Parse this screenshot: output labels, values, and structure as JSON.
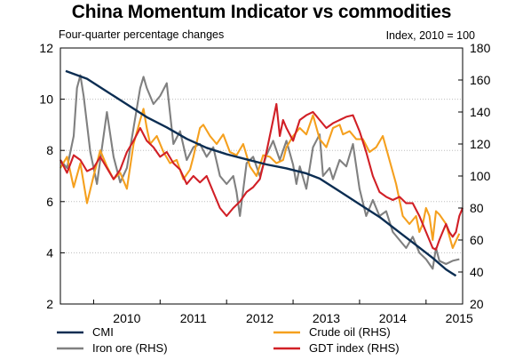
{
  "chart_data": {
    "type": "line",
    "title": "China Momentum Indicator vs commodities",
    "subtitle_left": "Four-quarter percentage changes",
    "subtitle_right": "Index, 2010 = 100",
    "x_range": [
      2009.5,
      2015.55
    ],
    "x_ticks": [
      "2010",
      "2011",
      "2012",
      "2013",
      "2014",
      "2015"
    ],
    "y_left": {
      "range": [
        2,
        12
      ],
      "ticks": [
        2,
        4,
        6,
        8,
        10,
        12
      ]
    },
    "y_right": {
      "range": [
        20,
        180
      ],
      "ticks": [
        20,
        40,
        60,
        80,
        100,
        120,
        140,
        160,
        180
      ]
    },
    "grid": "horizontal dotted",
    "legend_position": "bottom",
    "series": [
      {
        "name": "CMI",
        "axis": "left",
        "color": "#0b2d52",
        "points": [
          [
            2009.58,
            11.1
          ],
          [
            2009.9,
            10.8
          ],
          [
            2010.2,
            10.3
          ],
          [
            2010.5,
            9.8
          ],
          [
            2010.8,
            9.3
          ],
          [
            2011.1,
            8.9
          ],
          [
            2011.4,
            8.45
          ],
          [
            2011.7,
            8.1
          ],
          [
            2012.0,
            7.85
          ],
          [
            2012.3,
            7.65
          ],
          [
            2012.6,
            7.45
          ],
          [
            2012.9,
            7.3
          ],
          [
            2013.2,
            7.1
          ],
          [
            2013.4,
            6.9
          ],
          [
            2013.7,
            6.4
          ],
          [
            2014.0,
            5.9
          ],
          [
            2014.3,
            5.4
          ],
          [
            2014.6,
            4.8
          ],
          [
            2014.9,
            4.2
          ],
          [
            2015.1,
            3.8
          ],
          [
            2015.3,
            3.35
          ],
          [
            2015.45,
            3.1
          ]
        ]
      },
      {
        "name": "Iron ore (RHS)",
        "axis": "right",
        "color": "#808080",
        "points": [
          [
            2009.5,
            110
          ],
          [
            2009.6,
            105
          ],
          [
            2009.7,
            125
          ],
          [
            2009.75,
            155
          ],
          [
            2009.8,
            163
          ],
          [
            2009.85,
            150
          ],
          [
            2009.95,
            115
          ],
          [
            2010.05,
            95
          ],
          [
            2010.1,
            110
          ],
          [
            2010.2,
            140
          ],
          [
            2010.3,
            112
          ],
          [
            2010.4,
            96
          ],
          [
            2010.5,
            105
          ],
          [
            2010.6,
            130
          ],
          [
            2010.7,
            155
          ],
          [
            2010.75,
            162
          ],
          [
            2010.8,
            155
          ],
          [
            2010.9,
            145
          ],
          [
            2011.0,
            150
          ],
          [
            2011.1,
            158
          ],
          [
            2011.2,
            120
          ],
          [
            2011.3,
            128
          ],
          [
            2011.4,
            110
          ],
          [
            2011.5,
            118
          ],
          [
            2011.6,
            120
          ],
          [
            2011.7,
            112
          ],
          [
            2011.8,
            118
          ],
          [
            2011.9,
            100
          ],
          [
            2012.0,
            95
          ],
          [
            2012.1,
            100
          ],
          [
            2012.15,
            90
          ],
          [
            2012.2,
            75
          ],
          [
            2012.3,
            108
          ],
          [
            2012.4,
            112
          ],
          [
            2012.5,
            100
          ],
          [
            2012.6,
            113
          ],
          [
            2012.7,
            122
          ],
          [
            2012.8,
            110
          ],
          [
            2012.9,
            122
          ],
          [
            2013.0,
            107
          ],
          [
            2013.05,
            95
          ],
          [
            2013.1,
            106
          ],
          [
            2013.2,
            92
          ],
          [
            2013.3,
            118
          ],
          [
            2013.4,
            126
          ],
          [
            2013.45,
            100
          ],
          [
            2013.55,
            105
          ],
          [
            2013.6,
            98
          ],
          [
            2013.7,
            110
          ],
          [
            2013.8,
            106
          ],
          [
            2013.9,
            120
          ],
          [
            2014.0,
            92
          ],
          [
            2014.1,
            75
          ],
          [
            2014.2,
            85
          ],
          [
            2014.3,
            75
          ],
          [
            2014.4,
            78
          ],
          [
            2014.5,
            65
          ],
          [
            2014.6,
            60
          ],
          [
            2014.7,
            55
          ],
          [
            2014.8,
            62
          ],
          [
            2014.9,
            52
          ],
          [
            2015.0,
            48
          ],
          [
            2015.1,
            42
          ],
          [
            2015.15,
            55
          ],
          [
            2015.2,
            47
          ],
          [
            2015.3,
            45
          ],
          [
            2015.4,
            47
          ],
          [
            2015.5,
            48
          ]
        ]
      },
      {
        "name": "Crude oil (RHS)",
        "axis": "right",
        "color": "#f5a01e",
        "points": [
          [
            2009.5,
            105
          ],
          [
            2009.6,
            112
          ],
          [
            2009.7,
            93
          ],
          [
            2009.8,
            108
          ],
          [
            2009.9,
            83
          ],
          [
            2010.0,
            100
          ],
          [
            2010.1,
            116
          ],
          [
            2010.2,
            106
          ],
          [
            2010.3,
            98
          ],
          [
            2010.4,
            102
          ],
          [
            2010.5,
            92
          ],
          [
            2010.6,
            120
          ],
          [
            2010.7,
            135
          ],
          [
            2010.75,
            142
          ],
          [
            2010.8,
            130
          ],
          [
            2010.85,
            120
          ],
          [
            2010.95,
            125
          ],
          [
            2011.05,
            115
          ],
          [
            2011.15,
            108
          ],
          [
            2011.25,
            110
          ],
          [
            2011.35,
            98
          ],
          [
            2011.45,
            104
          ],
          [
            2011.5,
            112
          ],
          [
            2011.6,
            130
          ],
          [
            2011.65,
            132
          ],
          [
            2011.75,
            125
          ],
          [
            2011.85,
            120
          ],
          [
            2011.95,
            126
          ],
          [
            2012.05,
            115
          ],
          [
            2012.15,
            113
          ],
          [
            2012.25,
            120
          ],
          [
            2012.35,
            106
          ],
          [
            2012.45,
            100
          ],
          [
            2012.55,
            113
          ],
          [
            2012.65,
            112
          ],
          [
            2012.75,
            108
          ],
          [
            2012.85,
            110
          ],
          [
            2012.9,
            118
          ],
          [
            2013.0,
            125
          ],
          [
            2013.1,
            130
          ],
          [
            2013.2,
            126
          ],
          [
            2013.3,
            138
          ],
          [
            2013.4,
            123
          ],
          [
            2013.5,
            118
          ],
          [
            2013.6,
            130
          ],
          [
            2013.7,
            132
          ],
          [
            2013.75,
            126
          ],
          [
            2013.85,
            128
          ],
          [
            2013.95,
            123
          ],
          [
            2014.05,
            123
          ],
          [
            2014.15,
            115
          ],
          [
            2014.25,
            118
          ],
          [
            2014.35,
            125
          ],
          [
            2014.45,
            110
          ],
          [
            2014.55,
            95
          ],
          [
            2014.65,
            75
          ],
          [
            2014.75,
            70
          ],
          [
            2014.85,
            75
          ],
          [
            2014.9,
            65
          ],
          [
            2014.95,
            70
          ],
          [
            2015.0,
            80
          ],
          [
            2015.05,
            75
          ],
          [
            2015.1,
            60
          ],
          [
            2015.15,
            78
          ],
          [
            2015.2,
            76
          ],
          [
            2015.3,
            70
          ],
          [
            2015.4,
            55
          ],
          [
            2015.5,
            64
          ]
        ]
      },
      {
        "name": "GDT index (RHS)",
        "axis": "right",
        "color": "#d11f26",
        "points": [
          [
            2009.5,
            110
          ],
          [
            2009.6,
            102
          ],
          [
            2009.7,
            113
          ],
          [
            2009.8,
            110
          ],
          [
            2009.9,
            103
          ],
          [
            2010.0,
            105
          ],
          [
            2010.1,
            112
          ],
          [
            2010.2,
            105
          ],
          [
            2010.3,
            98
          ],
          [
            2010.4,
            104
          ],
          [
            2010.5,
            115
          ],
          [
            2010.6,
            122
          ],
          [
            2010.7,
            130
          ],
          [
            2010.8,
            122
          ],
          [
            2010.9,
            118
          ],
          [
            2011.0,
            112
          ],
          [
            2011.1,
            115
          ],
          [
            2011.2,
            108
          ],
          [
            2011.3,
            104
          ],
          [
            2011.4,
            95
          ],
          [
            2011.5,
            100
          ],
          [
            2011.6,
            96
          ],
          [
            2011.7,
            100
          ],
          [
            2011.8,
            90
          ],
          [
            2011.9,
            80
          ],
          [
            2012.0,
            75
          ],
          [
            2012.1,
            80
          ],
          [
            2012.2,
            84
          ],
          [
            2012.3,
            90
          ],
          [
            2012.4,
            93
          ],
          [
            2012.5,
            98
          ],
          [
            2012.6,
            115
          ],
          [
            2012.7,
            135
          ],
          [
            2012.75,
            145
          ],
          [
            2012.8,
            125
          ],
          [
            2012.85,
            135
          ],
          [
            2012.9,
            130
          ],
          [
            2013.0,
            122
          ],
          [
            2013.1,
            135
          ],
          [
            2013.2,
            138
          ],
          [
            2013.3,
            140
          ],
          [
            2013.4,
            135
          ],
          [
            2013.5,
            130
          ],
          [
            2013.6,
            133
          ],
          [
            2013.7,
            135
          ],
          [
            2013.8,
            137
          ],
          [
            2013.9,
            138
          ],
          [
            2014.0,
            128
          ],
          [
            2014.1,
            115
          ],
          [
            2014.2,
            100
          ],
          [
            2014.3,
            90
          ],
          [
            2014.4,
            87
          ],
          [
            2014.5,
            85
          ],
          [
            2014.6,
            87
          ],
          [
            2014.7,
            83
          ],
          [
            2014.8,
            83
          ],
          [
            2014.9,
            75
          ],
          [
            2015.0,
            65
          ],
          [
            2015.1,
            55
          ],
          [
            2015.15,
            54
          ],
          [
            2015.2,
            60
          ],
          [
            2015.25,
            65
          ],
          [
            2015.3,
            70
          ],
          [
            2015.35,
            65
          ],
          [
            2015.4,
            62
          ],
          [
            2015.45,
            65
          ],
          [
            2015.5,
            75
          ],
          [
            2015.55,
            80
          ]
        ]
      }
    ]
  }
}
